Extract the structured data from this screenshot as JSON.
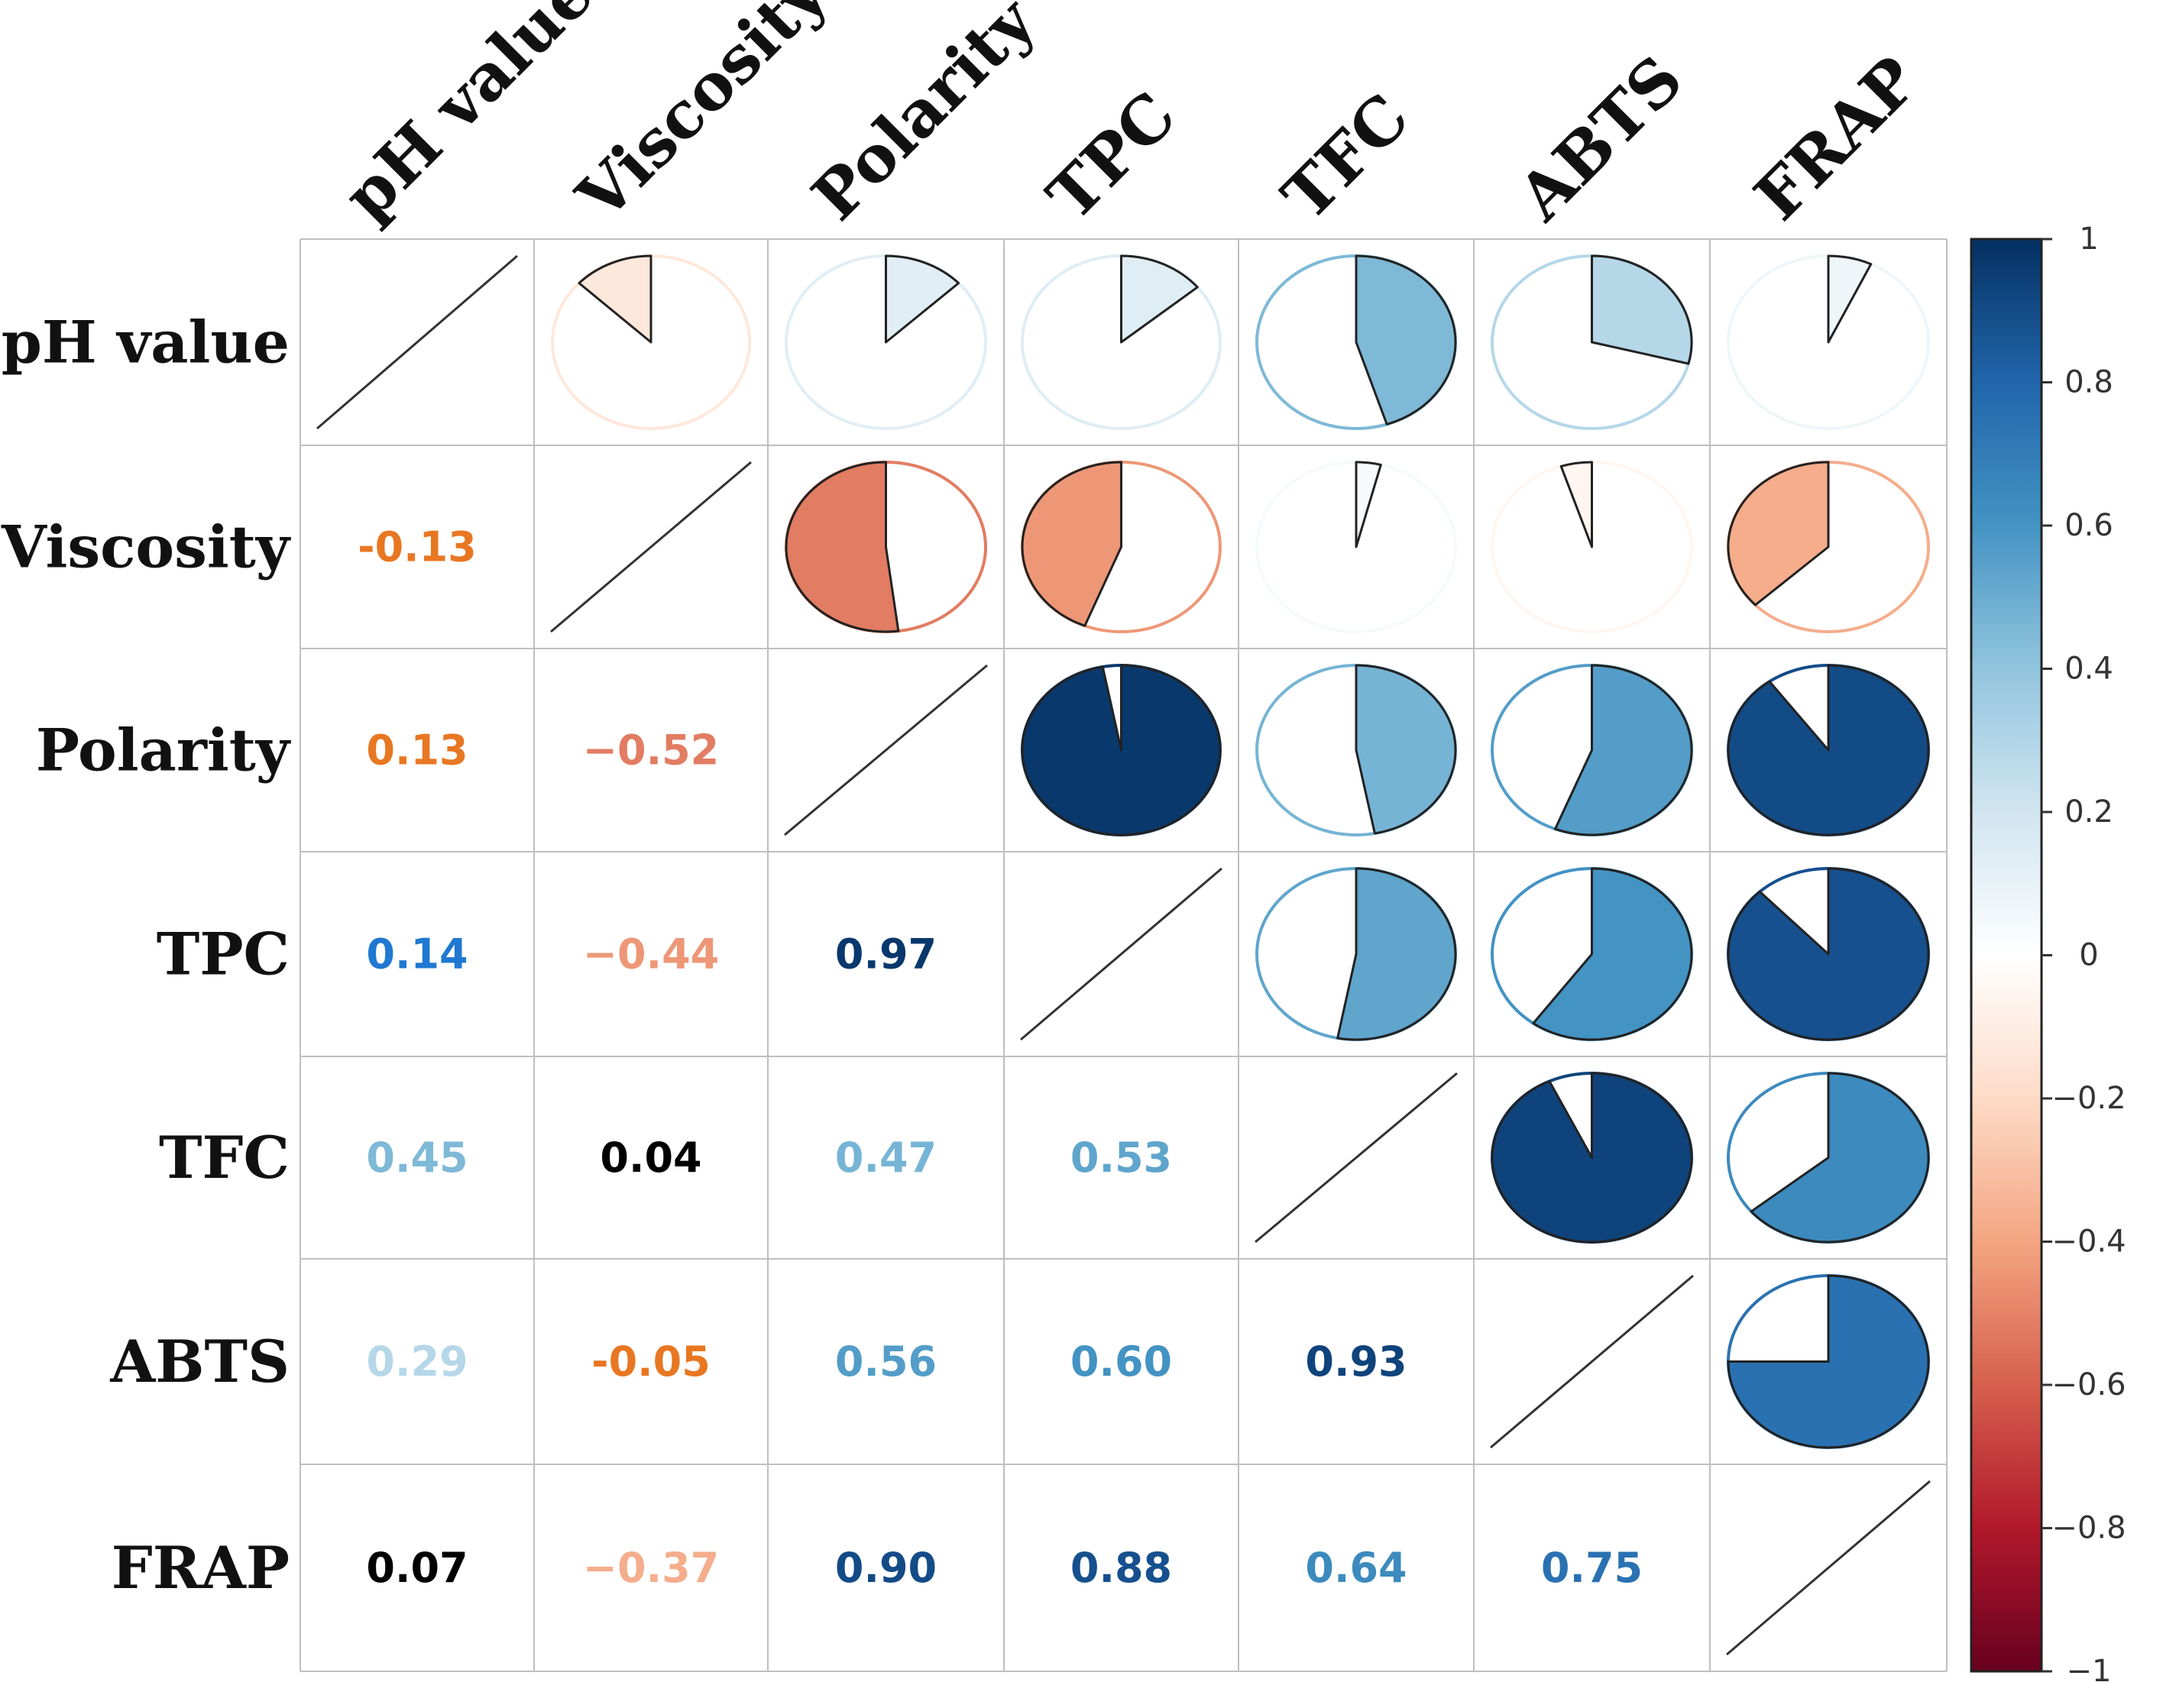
{
  "chart_data": {
    "type": "heatmap",
    "subtype": "correlation-matrix",
    "variables": [
      "pH value",
      "Viscosity",
      "Polarity",
      "TPC",
      "TFC",
      "ABTS",
      "FRAP"
    ],
    "matrix": [
      [
        1,
        -0.13,
        0.13,
        0.14,
        0.45,
        0.29,
        0.07
      ],
      [
        -0.13,
        1,
        -0.52,
        -0.44,
        0.04,
        -0.05,
        -0.37
      ],
      [
        0.13,
        -0.52,
        1,
        0.97,
        0.47,
        0.56,
        0.9
      ],
      [
        0.14,
        -0.44,
        0.97,
        1,
        0.53,
        0.6,
        0.88
      ],
      [
        0.45,
        0.04,
        0.47,
        0.53,
        1,
        0.93,
        0.64
      ],
      [
        0.29,
        -0.05,
        0.56,
        0.6,
        0.93,
        1,
        0.75
      ],
      [
        0.07,
        -0.37,
        0.9,
        0.88,
        0.64,
        0.75,
        1
      ]
    ],
    "lower_labels": [
      [
        "",
        "",
        "",
        "",
        "",
        "",
        ""
      ],
      [
        "-0.13",
        "",
        "",
        "",
        "",
        "",
        ""
      ],
      [
        "0.13",
        "−0.52",
        "",
        "",
        "",
        "",
        ""
      ],
      [
        "0.14",
        "−0.44",
        "0.97",
        "",
        "",
        "",
        ""
      ],
      [
        "0.45",
        "0.04",
        "0.47",
        "0.53",
        "",
        "",
        ""
      ],
      [
        "0.29",
        "-0.05",
        "0.56",
        "0.60",
        "0.93",
        "",
        ""
      ],
      [
        "0.07",
        "−0.37",
        "0.90",
        "0.88",
        "0.64",
        "0.75",
        ""
      ]
    ],
    "upper_method": "pie",
    "lower_method": "number",
    "diagonal_method": "line",
    "colorbar": {
      "range": [
        -1,
        1
      ],
      "ticks": [
        "1",
        "0.8",
        "0.6",
        "0.4",
        "0.2",
        "0",
        "−0.2",
        "−0.4",
        "−0.6",
        "−0.8",
        "−1"
      ],
      "stops": [
        "#67001F",
        "#B2182B",
        "#D6604D",
        "#F4A582",
        "#FDDBC7",
        "#FFFFFF",
        "#D1E5F0",
        "#92C5DE",
        "#4393C3",
        "#2166AC",
        "#053061"
      ],
      "position": "right"
    },
    "colors": {
      "orange_text": "#e87722",
      "bright_blue_text": "#1f78d1",
      "black_text": "#000000",
      "outline": "#222222"
    }
  }
}
